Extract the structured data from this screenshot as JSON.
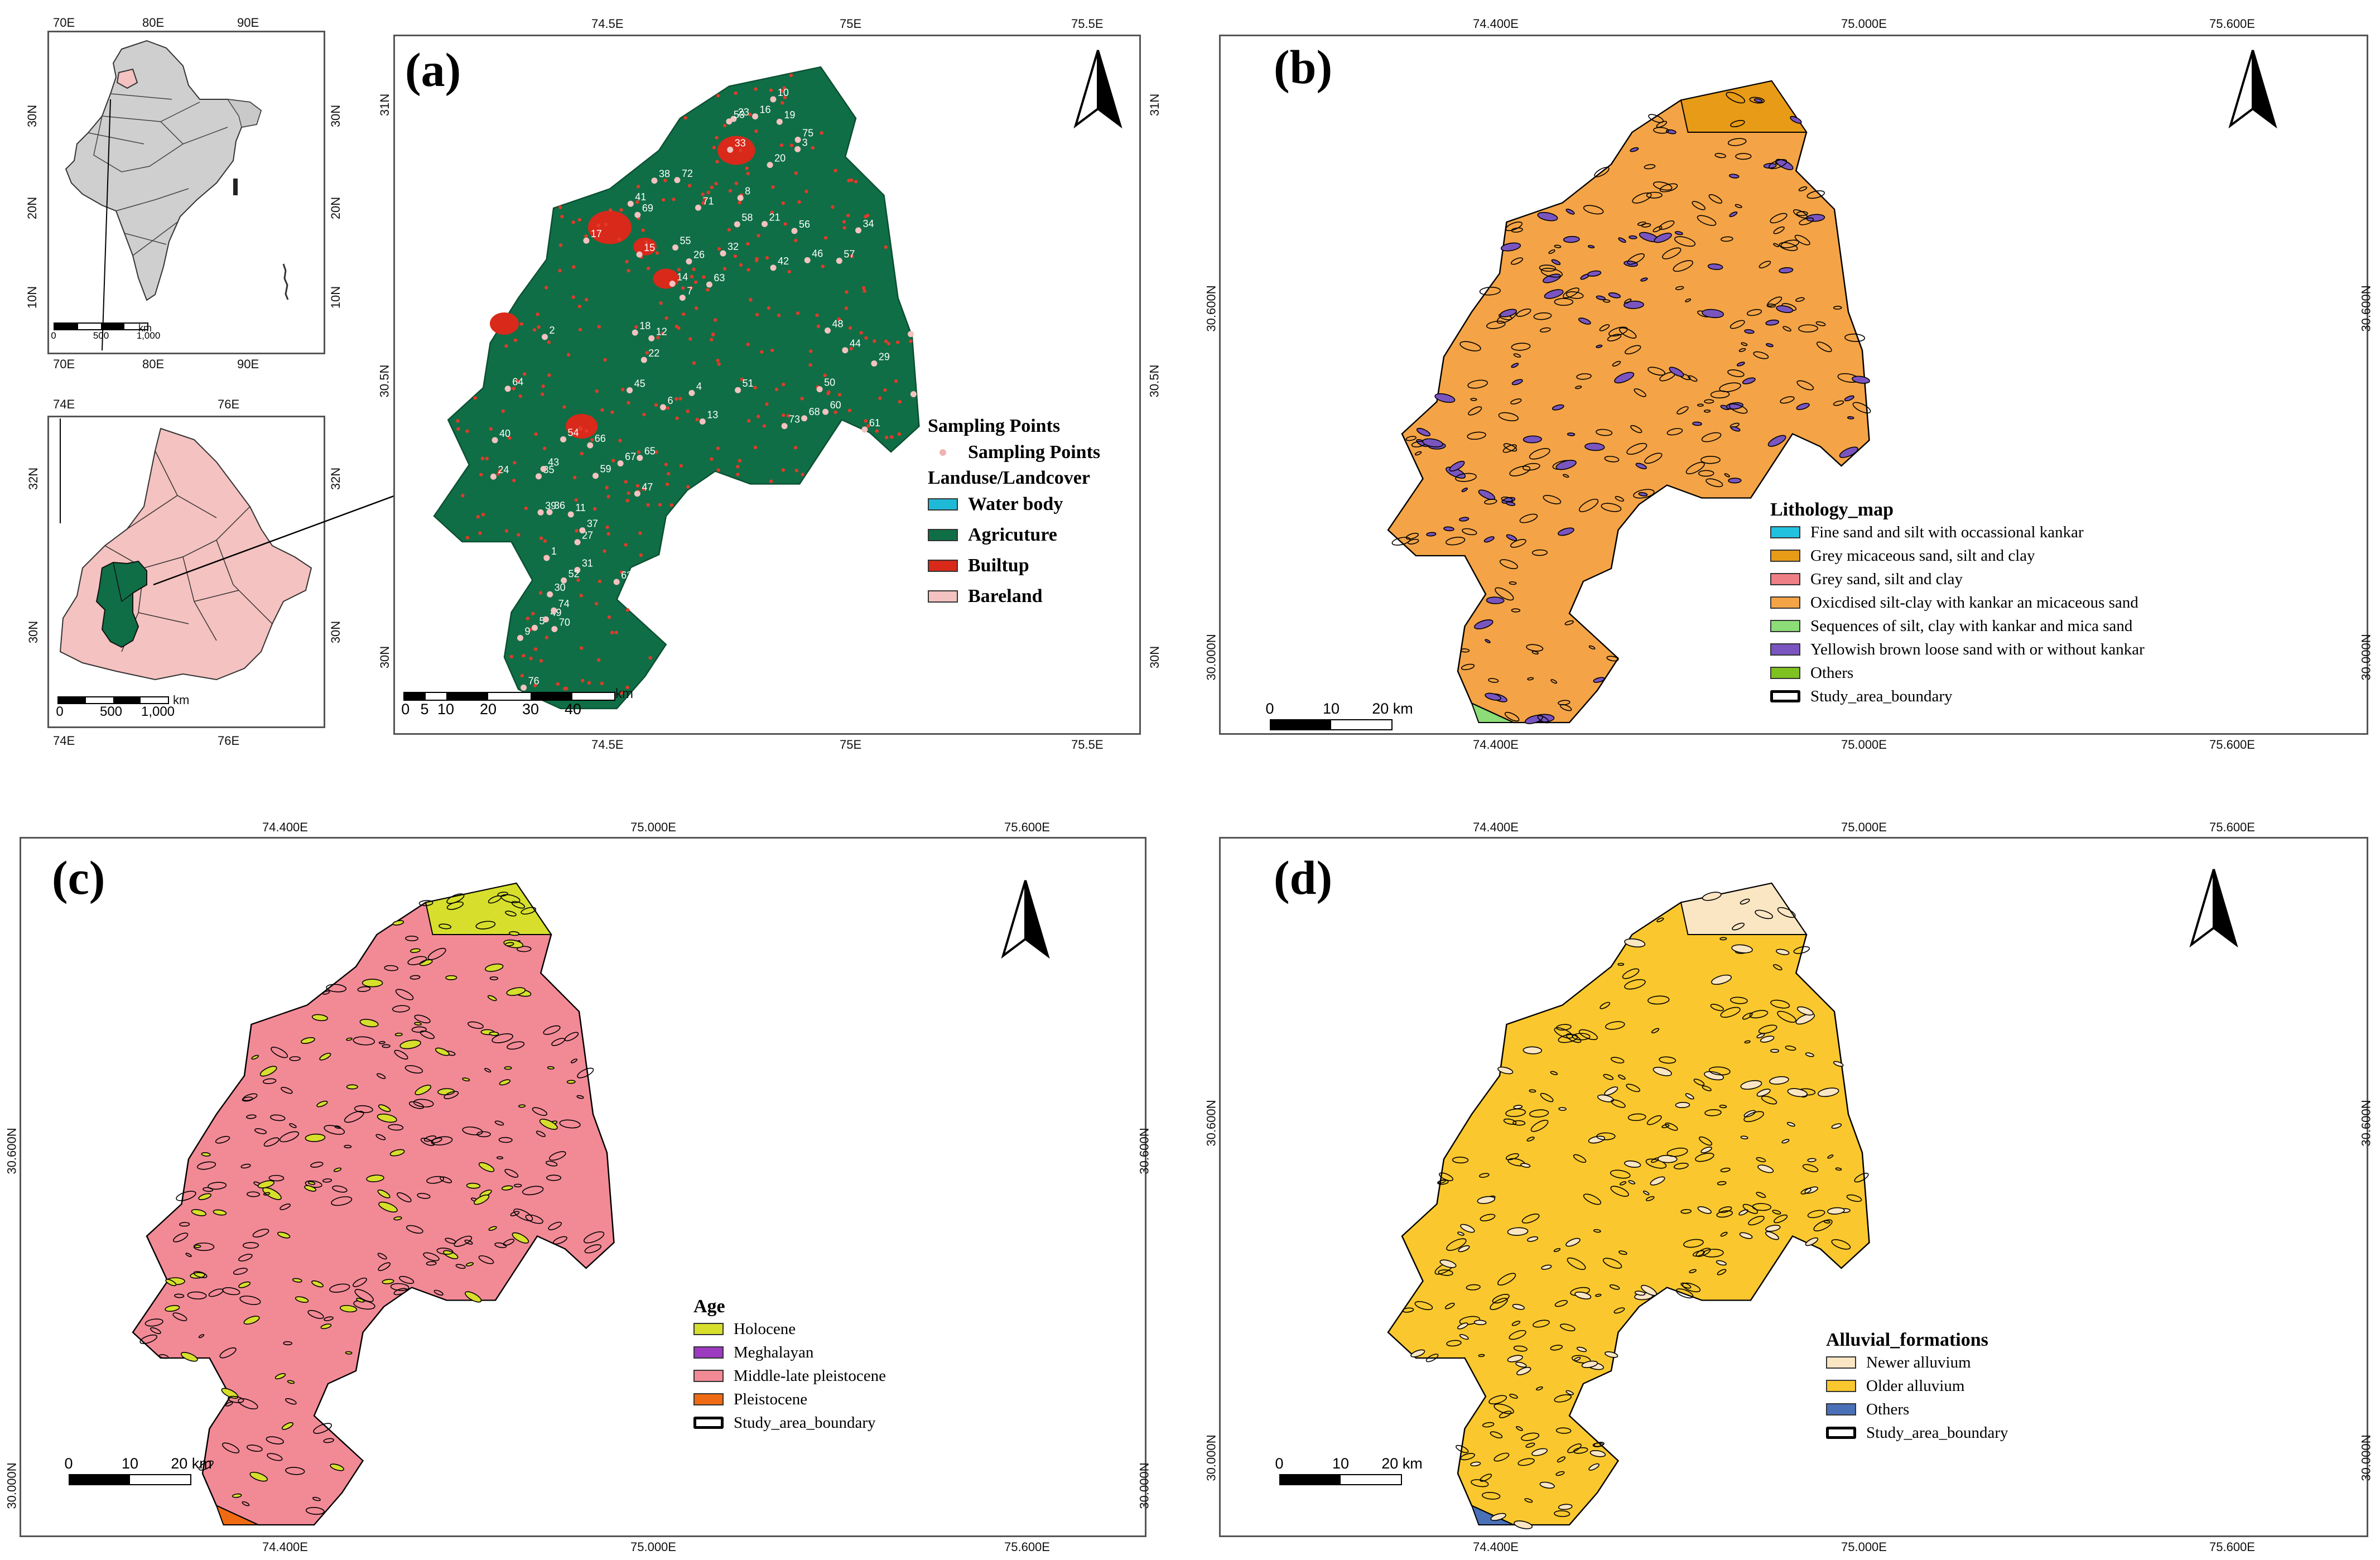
{
  "colors": {
    "agriculture": "#0f6e46",
    "builtup": "#d8291a",
    "bareland": "#f4c2c0",
    "waterbody": "#1fb9d8",
    "litho_oxidised": "#f4a446",
    "litho_grey_micaceous": "#e89b16",
    "litho_yellowish": "#7a55c0",
    "litho_fine": "#21c1e0",
    "litho_grey_sand": "#ef7f86",
    "litho_sequences": "#8cdc78",
    "litho_others": "#7fc120",
    "age_holocene": "#d7df2c",
    "age_meghalayan": "#9c3ac0",
    "age_middle_late": "#f28a96",
    "age_pleistocene": "#ef6a12",
    "all_newer": "#fbe6c4",
    "all_older": "#fac82e",
    "all_others": "#4a70b8"
  },
  "inset_india": {
    "top_ticks": [
      "70E",
      "80E",
      "90E"
    ],
    "bottom_ticks": [
      "70E",
      "80E",
      "90E"
    ],
    "left_ticks": [
      "30N",
      "20N",
      "10N"
    ],
    "right_ticks": [
      "30N",
      "20N",
      "10N"
    ],
    "scale_labels": [
      "0",
      "500",
      "1,000"
    ],
    "scale_unit": "km"
  },
  "inset_punjab": {
    "top_ticks": [
      "74E",
      "76E"
    ],
    "bottom_ticks": [
      "74E",
      "76E"
    ],
    "left_ticks": [
      "32N",
      "30N"
    ],
    "right_ticks": [
      "32N",
      "30N"
    ],
    "scale_labels": [
      "0",
      "500",
      "1,000"
    ],
    "scale_unit": "km"
  },
  "panel_a": {
    "label": "(a)",
    "top_ticks": [
      "74.5E",
      "75E",
      "75.5E"
    ],
    "bottom_ticks": [
      "74.5E",
      "75E",
      "75.5E"
    ],
    "left_ticks": [
      "31N",
      "30.5N",
      "30N"
    ],
    "right_ticks": [
      "31N",
      "30.5N",
      "30N"
    ],
    "scale_labels": [
      "0",
      "5",
      "10",
      "20",
      "30",
      "40"
    ],
    "scale_unit": "km",
    "legend": {
      "title1": "Sampling Points",
      "point_label": "Sampling Points",
      "title2": "Landuse/Landcover",
      "items": [
        {
          "label": "Water body",
          "color": "#1fb9d8"
        },
        {
          "label": "Agricuture",
          "color": "#0f6e46"
        },
        {
          "label": "Builtup",
          "color": "#d8291a"
        },
        {
          "label": "Bareland",
          "color": "#f4c2c0"
        }
      ]
    },
    "sample_numbers": [
      "1",
      "2",
      "3",
      "4",
      "5",
      "6",
      "7",
      "8",
      "9",
      "10",
      "11",
      "12",
      "13",
      "14",
      "15",
      "16",
      "17",
      "18",
      "19",
      "20",
      "21",
      "22",
      "23",
      "24",
      "25",
      "26",
      "27",
      "28",
      "29",
      "30",
      "31",
      "32",
      "33",
      "34",
      "35",
      "36",
      "37",
      "38",
      "39",
      "40",
      "41",
      "42",
      "43",
      "44",
      "45",
      "46",
      "47",
      "48",
      "49",
      "50",
      "51",
      "52",
      "53",
      "54",
      "55",
      "56",
      "57",
      "58",
      "59",
      "60",
      "61",
      "62",
      "63",
      "64",
      "65",
      "66",
      "67",
      "68",
      "69",
      "70",
      "71",
      "72",
      "73",
      "74",
      "75",
      "76"
    ]
  },
  "panel_b": {
    "label": "(b)",
    "top_ticks": [
      "74.400E",
      "75.000E",
      "75.600E"
    ],
    "bottom_ticks": [
      "74.400E",
      "75.000E",
      "75.600E"
    ],
    "left_ticks": [
      "30.600N",
      "30.000N"
    ],
    "right_ticks": [
      "30.600N",
      "30.000N"
    ],
    "scale_labels": [
      "0",
      "10",
      "20 km"
    ],
    "legend_title": "Lithology_map",
    "items": [
      {
        "label": "Fine sand and silt with occassional kankar",
        "color": "#21c1e0"
      },
      {
        "label": "Grey micaceous sand, silt and clay",
        "color": "#e89b16"
      },
      {
        "label": "Grey sand, silt and clay",
        "color": "#ef7f86"
      },
      {
        "label": "Oxicdised silt-clay with kankar an micaceous sand",
        "color": "#f4a446"
      },
      {
        "label": "Sequences of silt, clay with kankar and mica sand",
        "color": "#8cdc78"
      },
      {
        "label": "Yellowish brown loose sand with or without kankar",
        "color": "#7a55c0"
      },
      {
        "label": "Others",
        "color": "#7fc120"
      },
      {
        "label": "Study_area_boundary",
        "color": "boundary"
      }
    ]
  },
  "panel_c": {
    "label": "(c)",
    "top_ticks": [
      "74.400E",
      "75.000E",
      "75.600E"
    ],
    "bottom_ticks": [
      "74.400E",
      "75.000E",
      "75.600E"
    ],
    "left_ticks": [
      "30.600N",
      "30.000N"
    ],
    "right_ticks": [
      "30.600N",
      "30.000N"
    ],
    "scale_labels": [
      "0",
      "10",
      "20 km"
    ],
    "legend_title": "Age",
    "items": [
      {
        "label": "Holocene",
        "color": "#d7df2c"
      },
      {
        "label": "Meghalayan",
        "color": "#9c3ac0"
      },
      {
        "label": "Middle-late pleistocene",
        "color": "#f28a96"
      },
      {
        "label": "Pleistocene",
        "color": "#ef6a12"
      },
      {
        "label": "Study_area_boundary",
        "color": "boundary"
      }
    ]
  },
  "panel_d": {
    "label": "(d)",
    "top_ticks": [
      "74.400E",
      "75.000E",
      "75.600E"
    ],
    "bottom_ticks": [
      "74.400E",
      "75.000E",
      "75.600E"
    ],
    "left_ticks": [
      "30.600N",
      "30.000N"
    ],
    "right_ticks": [
      "30.600N",
      "30.000N"
    ],
    "scale_labels": [
      "0",
      "10",
      "20 km"
    ],
    "legend_title": "Alluvial_formations",
    "items": [
      {
        "label": "Newer alluvium",
        "color": "#fbe6c4"
      },
      {
        "label": "Older alluvium",
        "color": "#fac82e"
      },
      {
        "label": "Others",
        "color": "#4a70b8"
      },
      {
        "label": "Study_area_boundary",
        "color": "boundary"
      }
    ]
  }
}
